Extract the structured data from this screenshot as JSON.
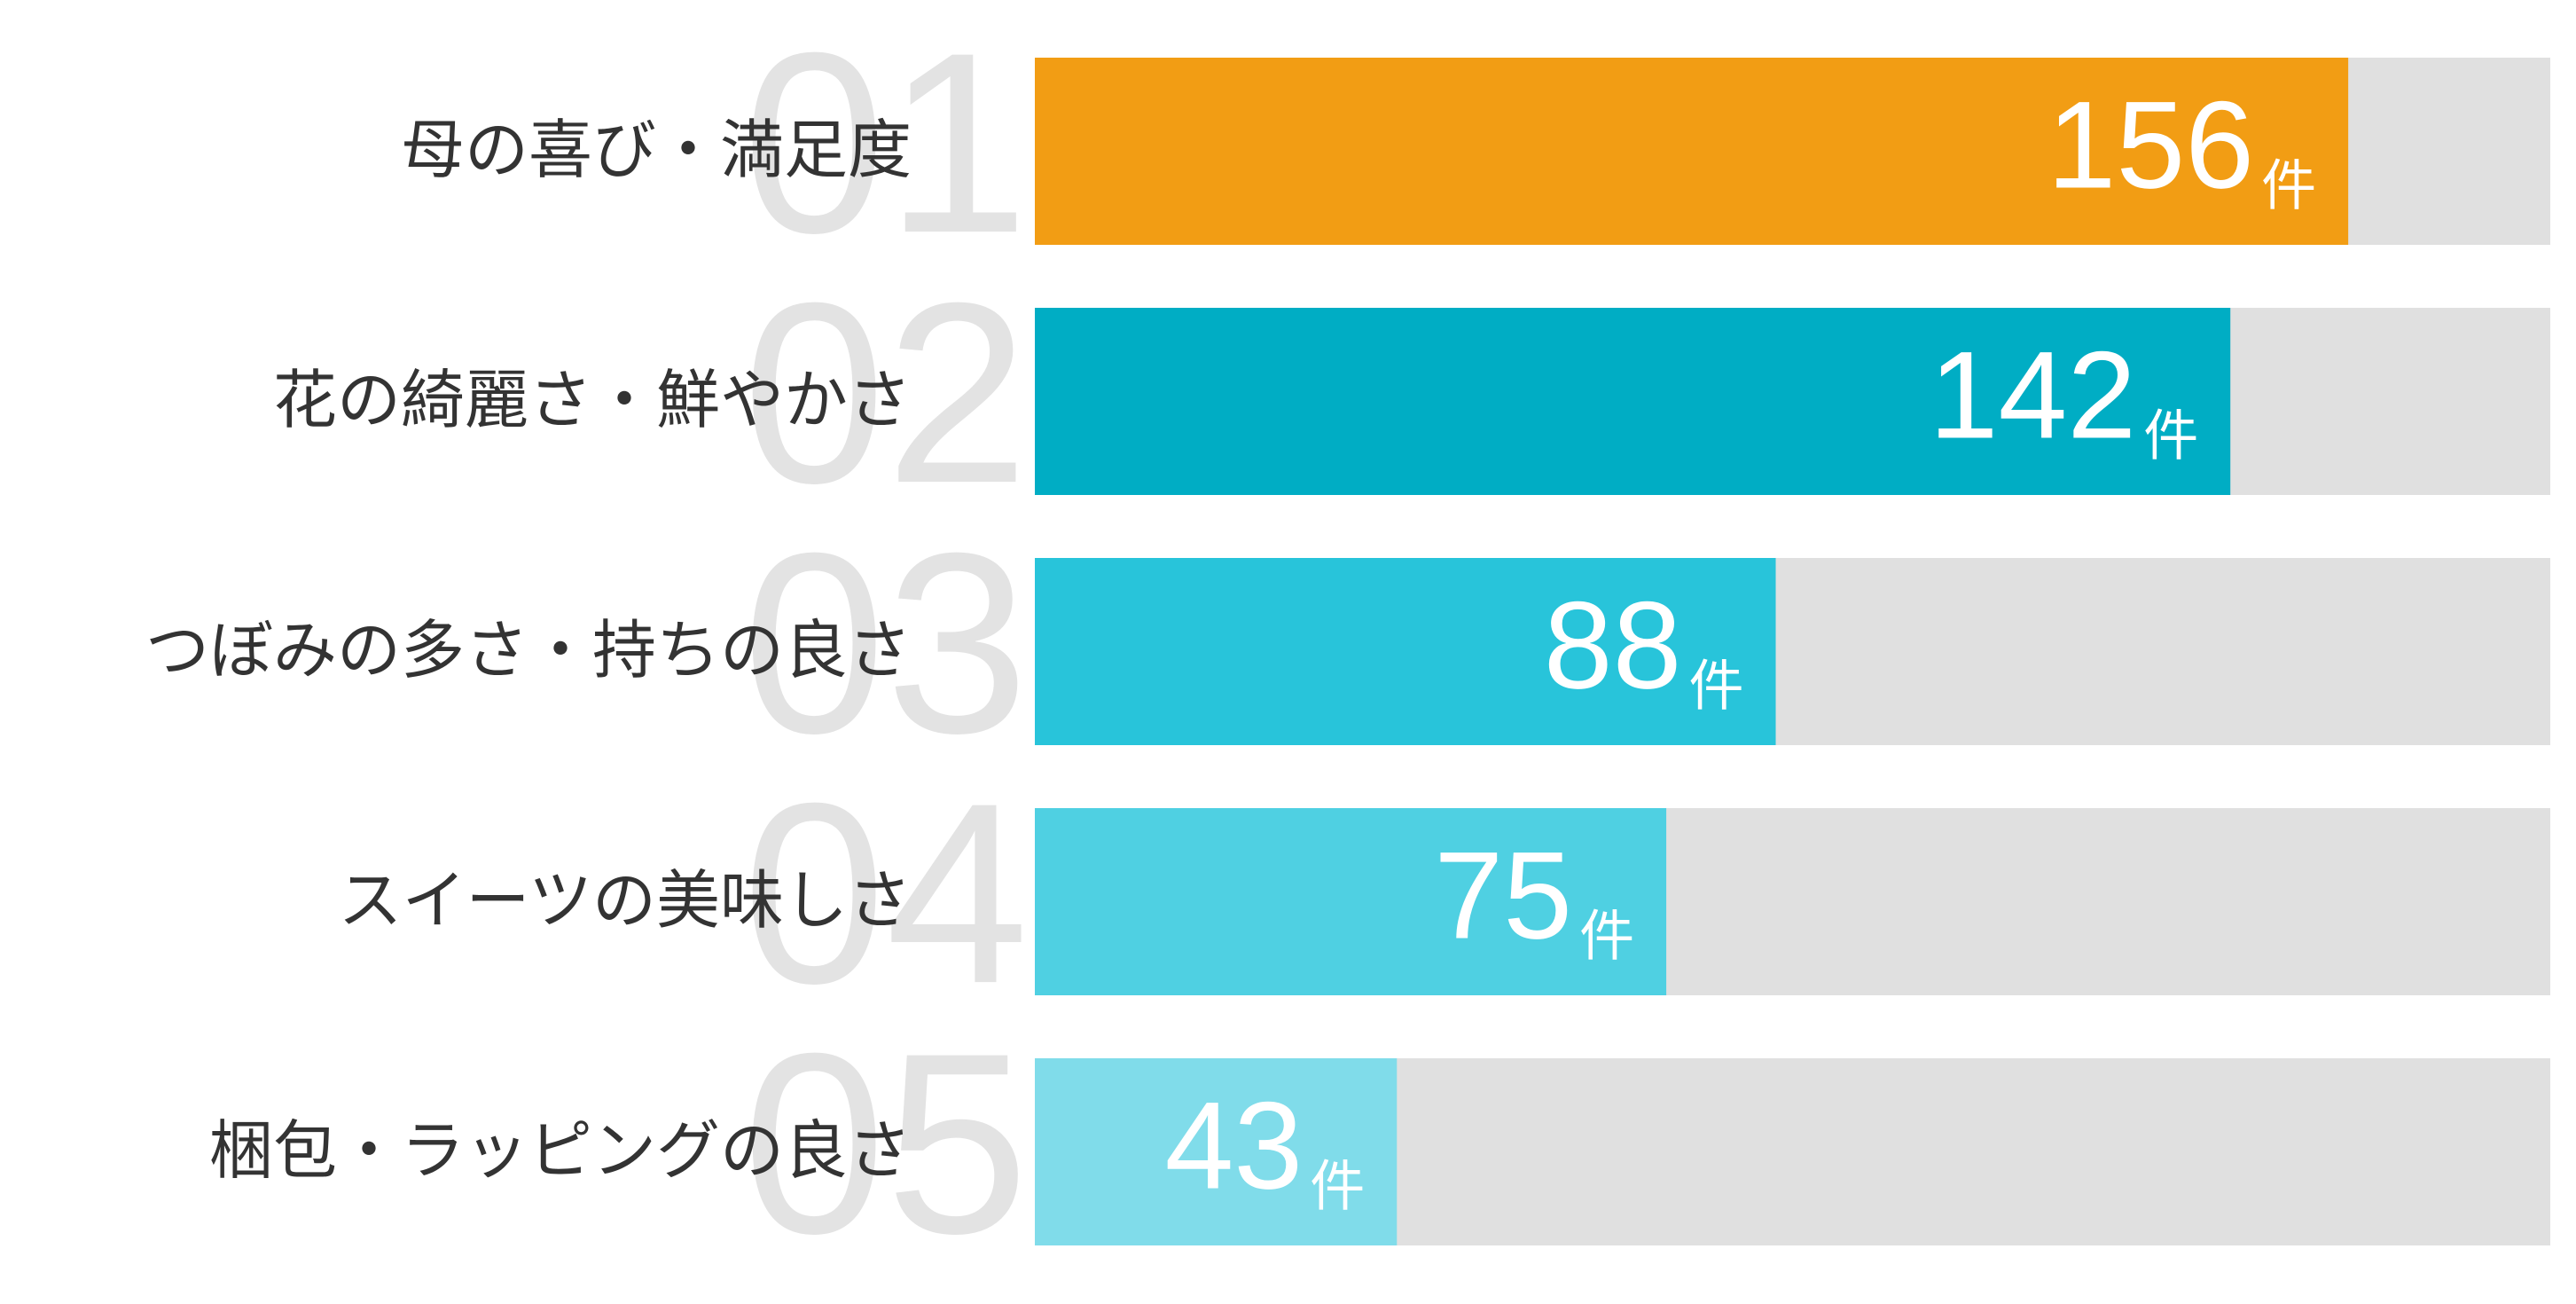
{
  "chart_data": {
    "type": "bar",
    "orientation": "horizontal",
    "ranks": [
      "01",
      "02",
      "03",
      "04",
      "05"
    ],
    "categories": [
      "母の喜び・満足度",
      "花の綺麗さ・鮮やかさ",
      "つぼみの多さ・持ちの良さ",
      "スイーツの美味しさ",
      "梱包・ラッピングの良さ"
    ],
    "values": [
      156,
      142,
      88,
      75,
      43
    ],
    "unit": "件",
    "colors": [
      "#f29d14",
      "#00adc4",
      "#28c4da",
      "#4fd0e2",
      "#80dcea"
    ],
    "track_color": "#e0e0e0",
    "xlim": [
      0,
      180
    ]
  }
}
